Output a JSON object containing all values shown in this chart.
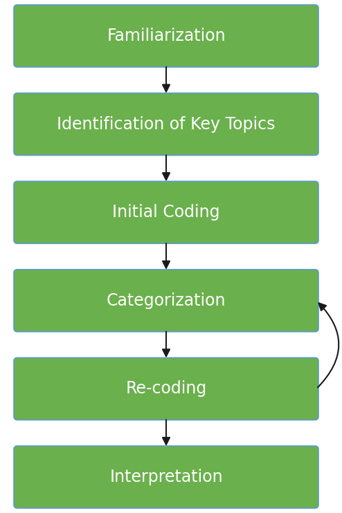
{
  "boxes": [
    "Familiarization",
    "Identification of Key Topics",
    "Initial Coding",
    "Categorization",
    "Re-coding",
    "Interpretation"
  ],
  "box_color": "#6ab04c",
  "box_edge_color": "#5b9bd5",
  "text_color": "#ffffff",
  "bg_color": "#ffffff",
  "arrow_color": "#1a1a1a",
  "font_size": 17,
  "fig_width": 4.94,
  "fig_height": 7.42
}
